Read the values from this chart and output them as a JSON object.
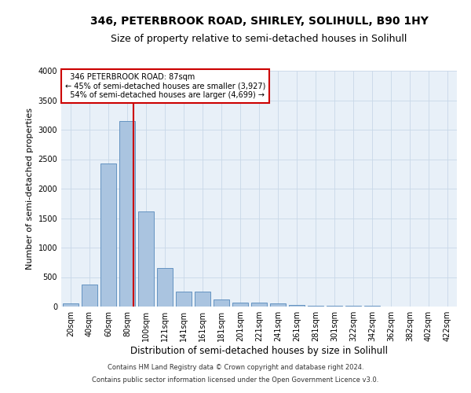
{
  "title": "346, PETERBROOK ROAD, SHIRLEY, SOLIHULL, B90 1HY",
  "subtitle": "Size of property relative to semi-detached houses in Solihull",
  "xlabel": "Distribution of semi-detached houses by size in Solihull",
  "ylabel": "Number of semi-detached properties",
  "footer1": "Contains HM Land Registry data © Crown copyright and database right 2024.",
  "footer2": "Contains public sector information licensed under the Open Government Licence v3.0.",
  "bin_labels": [
    "20sqm",
    "40sqm",
    "60sqm",
    "80sqm",
    "100sqm",
    "121sqm",
    "141sqm",
    "161sqm",
    "181sqm",
    "201sqm",
    "221sqm",
    "241sqm",
    "261sqm",
    "281sqm",
    "301sqm",
    "322sqm",
    "342sqm",
    "362sqm",
    "382sqm",
    "402sqm",
    "422sqm"
  ],
  "bin_values": [
    50,
    380,
    2430,
    3150,
    1620,
    660,
    260,
    260,
    120,
    70,
    70,
    55,
    30,
    20,
    15,
    10,
    10,
    5,
    5,
    3,
    2
  ],
  "bar_color": "#aac4e0",
  "bar_edge_color": "#5588bb",
  "property_label": "346 PETERBROOK ROAD: 87sqm",
  "pct_smaller": 45,
  "pct_smaller_count": "3,927",
  "pct_larger": 54,
  "pct_larger_count": "4,699",
  "annotation_box_color": "#ffffff",
  "annotation_box_edge": "#cc0000",
  "vline_color": "#cc0000",
  "vline_x": 3.35,
  "ylim": [
    0,
    4000
  ],
  "yticks": [
    0,
    500,
    1000,
    1500,
    2000,
    2500,
    3000,
    3500,
    4000
  ],
  "background_color": "#ffffff",
  "plot_bg_color": "#e8f0f8",
  "grid_color": "#c8d8e8",
  "title_fontsize": 10,
  "subtitle_fontsize": 9,
  "xlabel_fontsize": 8.5,
  "ylabel_fontsize": 8,
  "tick_fontsize": 7,
  "annot_fontsize": 7,
  "footer_fontsize": 6
}
